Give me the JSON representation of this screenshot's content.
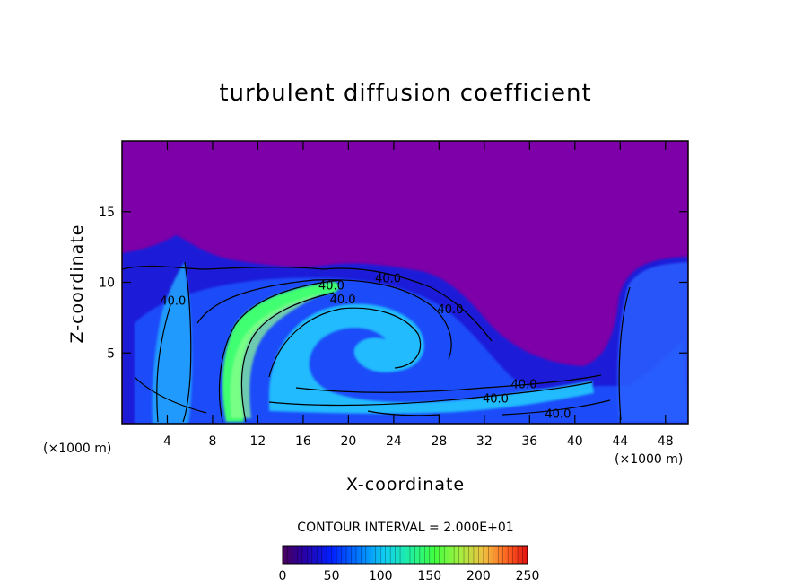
{
  "chart_data": {
    "type": "heatmap",
    "title": "turbulent diffusion coefficient",
    "xlabel": "X-coordinate",
    "ylabel": "Z-coordinate",
    "x_unit": "(×1000 m)",
    "z_unit": "(×1000 m)",
    "xlim": [
      0,
      50
    ],
    "ylim": [
      0,
      20
    ],
    "x_ticks": [
      4,
      8,
      12,
      16,
      20,
      24,
      28,
      32,
      36,
      40,
      44,
      48
    ],
    "y_ticks": [
      5,
      10,
      15
    ],
    "contour_interval_text": "CONTOUR INTERVAL =  2.000E+01",
    "contour_labels": [
      {
        "text": "40.0",
        "x": 4.5,
        "y": 8.4
      },
      {
        "text": "40.0",
        "x": 18.5,
        "y": 9.5
      },
      {
        "text": "40.0",
        "x": 19.5,
        "y": 8.5
      },
      {
        "text": "40.0",
        "x": 23.5,
        "y": 10.0
      },
      {
        "text": "40.0",
        "x": 29.0,
        "y": 7.8
      },
      {
        "text": "40.0",
        "x": 35.5,
        "y": 2.5
      },
      {
        "text": "40.0",
        "x": 33.0,
        "y": 1.5
      },
      {
        "text": "40.0",
        "x": 38.5,
        "y": 0.4
      }
    ],
    "colorbar": {
      "min": 0,
      "max": 250,
      "ticks": [
        0,
        50,
        100,
        150,
        200,
        250
      ]
    },
    "colors": {
      "background": "#7d00a8",
      "low": "#1400c8",
      "mid": "#18c0ff",
      "high": "#40ff60",
      "top": "#ff2000"
    }
  }
}
